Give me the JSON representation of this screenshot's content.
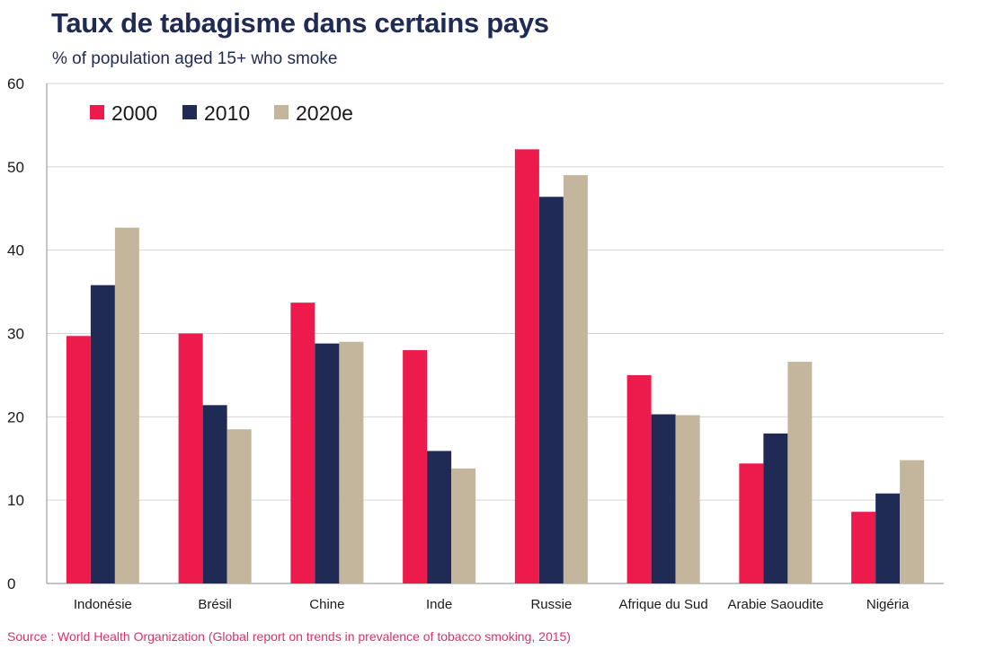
{
  "chart_data": {
    "type": "bar",
    "title": "Taux de tabagisme dans certains pays",
    "subtitle": "% of population aged 15+ who smoke",
    "source": "Source : World Health Organization (Global report on trends in prevalence of tobacco smoking, 2015)",
    "categories": [
      "Indonésie",
      "Brésil",
      "Chine",
      "Inde",
      "Russie",
      "Afrique du Sud",
      "Arabie Saoudite",
      "Nigéria"
    ],
    "series": [
      {
        "name": "2000",
        "color": "#ec1b4b",
        "values": [
          29.7,
          30.0,
          33.7,
          28.0,
          52.1,
          25.0,
          14.4,
          8.6
        ]
      },
      {
        "name": "2010",
        "color": "#1f2a55",
        "values": [
          35.8,
          21.4,
          28.8,
          15.9,
          46.4,
          20.3,
          18.0,
          10.8
        ]
      },
      {
        "name": "2020e",
        "color": "#c4b69c",
        "values": [
          42.7,
          18.5,
          29.0,
          13.8,
          49.0,
          20.2,
          26.6,
          14.8
        ]
      }
    ],
    "ylim": [
      0,
      60
    ],
    "yticks": [
      "0",
      "10",
      "20",
      "30",
      "40",
      "50",
      "60"
    ],
    "grid": true,
    "legend_position": "top-left"
  }
}
